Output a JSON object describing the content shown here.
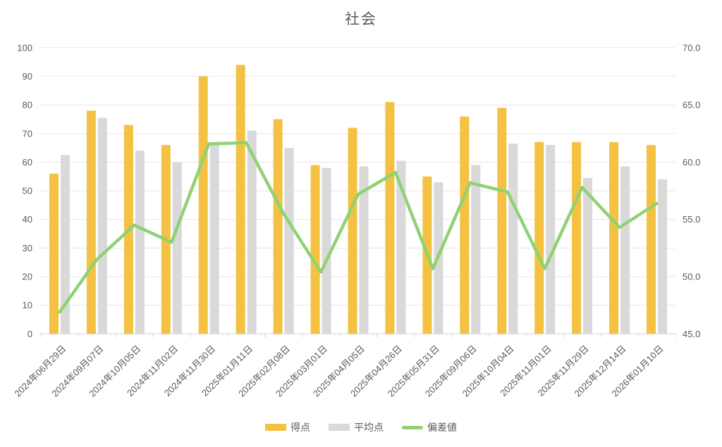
{
  "chart_data": {
    "type": "bar",
    "subtype": "combo-bar-line",
    "title": "社会",
    "categories": [
      "2024年06月29日",
      "2024年09月07日",
      "2024年10月05日",
      "2024年11月02日",
      "2024年11月30日",
      "2025年01月11日",
      "2025年02月08日",
      "2025年03月01日",
      "2025年04月05日",
      "2025年04月26日",
      "2025年05月31日",
      "2025年09月06日",
      "2025年10月04日",
      "2025年11月01日",
      "2025年11月29日",
      "2025年12月14日",
      "2026年01月10日"
    ],
    "series": [
      {
        "name": "得点",
        "type": "bar",
        "axis": "left",
        "color": "#F4C242",
        "values": [
          56,
          78,
          73,
          66,
          90,
          94,
          75,
          59,
          72,
          81,
          55,
          76,
          79,
          67,
          67,
          67,
          66
        ]
      },
      {
        "name": "平均点",
        "type": "bar",
        "axis": "left",
        "color": "#D9D9D9",
        "values": [
          62.5,
          75.5,
          64,
          60,
          66,
          71,
          65,
          58,
          58.5,
          60.5,
          53,
          59,
          66.5,
          66,
          54.5,
          58.5,
          54
        ]
      },
      {
        "name": "偏差値",
        "type": "line",
        "axis": "right",
        "color": "#8FD274",
        "values": [
          46.9,
          51.5,
          54.5,
          53.0,
          61.6,
          61.7,
          55.5,
          50.4,
          57.2,
          59.1,
          50.7,
          58.2,
          57.4,
          50.7,
          57.8,
          54.3,
          56.4
        ]
      }
    ],
    "left_axis": {
      "min": 0,
      "max": 100,
      "step": 10,
      "ticks": [
        "100",
        "90",
        "80",
        "70",
        "60",
        "50",
        "40",
        "30",
        "20",
        "10",
        "0"
      ]
    },
    "right_axis": {
      "min": 45,
      "max": 70,
      "step": 5,
      "ticks": [
        "70.0",
        "65.0",
        "60.0",
        "55.0",
        "50.0",
        "45.0"
      ]
    },
    "grid": true,
    "legend_position": "bottom",
    "colors": {
      "gridline": "#E6E6E6",
      "axis_line": "#D5D5D5",
      "tick_mark": "#D9D9D9",
      "text": "#595959"
    }
  }
}
